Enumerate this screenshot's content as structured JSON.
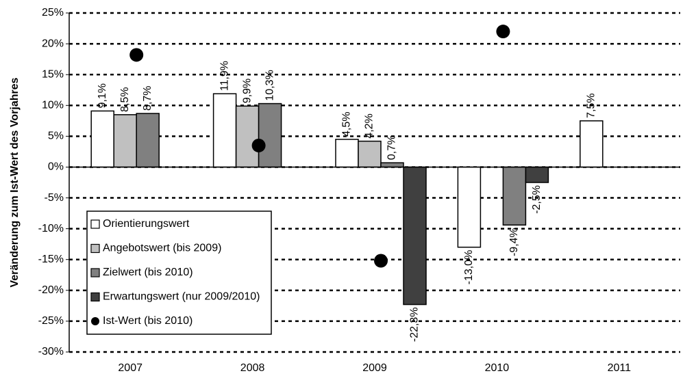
{
  "chart_data": {
    "type": "bar",
    "ylabel": "Veränderung zum Ist-Wert des Vorjahres",
    "categories": [
      "2007",
      "2008",
      "2009",
      "2010",
      "2011"
    ],
    "series": [
      {
        "name": "Orientierungswert",
        "color": "#ffffff",
        "values": [
          9.1,
          11.9,
          4.5,
          -13.0,
          7.5
        ],
        "value_labels": [
          "9,1%",
          "11,9%",
          "4,5%",
          "-13,0%",
          "7,5%"
        ]
      },
      {
        "name": "Angebotswert (bis 2009)",
        "color": "#c0c0c0",
        "values": [
          8.5,
          9.9,
          4.2,
          null,
          null
        ],
        "value_labels": [
          "8,5%",
          "9,9%",
          "4,2%",
          null,
          null
        ]
      },
      {
        "name": "Zielwert (bis 2010)",
        "color": "#808080",
        "values": [
          8.7,
          10.3,
          0.7,
          -9.4,
          null
        ],
        "value_labels": [
          "8,7%",
          "10,3%",
          "0,7%",
          "-9,4%",
          null
        ]
      },
      {
        "name": "Erwartungswert (nur 2009/2010)",
        "color": "#404040",
        "values": [
          null,
          null,
          -22.3,
          -2.5,
          null
        ],
        "value_labels": [
          null,
          null,
          "-22,3%",
          "-2,5%",
          null
        ]
      },
      {
        "name": "Ist-Wert (bis 2010)",
        "type": "scatter",
        "color": "#000000",
        "values": [
          18.2,
          3.5,
          -15.2,
          22.0,
          null
        ]
      }
    ],
    "ylim": [
      -30,
      25
    ],
    "yticks": [
      {
        "value": -30,
        "label": "-30%"
      },
      {
        "value": -25,
        "label": "-25%"
      },
      {
        "value": -20,
        "label": "-20%"
      },
      {
        "value": -15,
        "label": "-15%"
      },
      {
        "value": -10,
        "label": "-10%"
      },
      {
        "value": -5,
        "label": "-5%"
      },
      {
        "value": 0,
        "label": "0%"
      },
      {
        "value": 5,
        "label": "5%"
      },
      {
        "value": 10,
        "label": "10%"
      },
      {
        "value": 15,
        "label": "15%"
      },
      {
        "value": 20,
        "label": "20%"
      },
      {
        "value": 25,
        "label": "25%"
      }
    ],
    "grid": true,
    "legend": "lower left"
  }
}
